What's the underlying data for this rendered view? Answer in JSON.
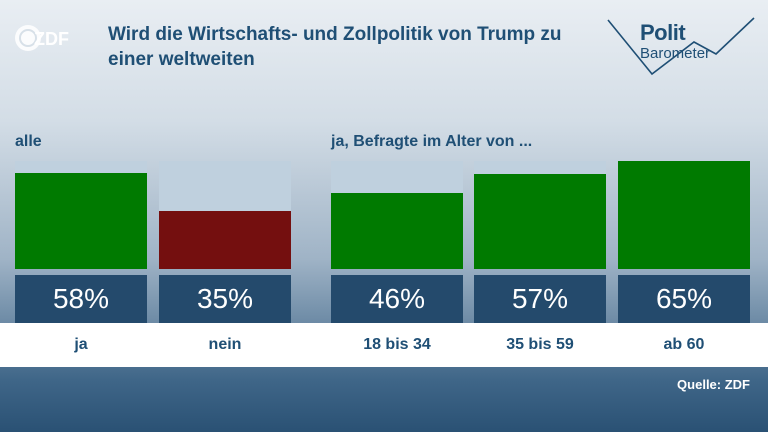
{
  "header": {
    "logo_text": "ZDF",
    "title": "Wird die Wirtschafts- und Zollpolitik von Trump zu einer weltweiten",
    "brand_line1": "Polit",
    "brand_line2": "Barometer"
  },
  "chart_data": {
    "type": "bar",
    "title": "Wird die Wirtschafts- und Zollpolitik von Trump zu einer weltweiten",
    "unit": "%",
    "ylim": [
      0,
      65
    ],
    "groups": [
      {
        "label": "alle",
        "categories": [
          "ja",
          "nein"
        ],
        "values": [
          58,
          35
        ],
        "colors": [
          "#007a00",
          "#740f0f"
        ]
      },
      {
        "label": "ja, Befragte im Alter von ...",
        "categories": [
          "18 bis 34",
          "35 bis 59",
          "ab 60"
        ],
        "values": [
          46,
          57,
          65
        ],
        "colors": [
          "#007a00",
          "#007a00",
          "#007a00"
        ]
      }
    ]
  },
  "footer": {
    "source": "Quelle: ZDF"
  }
}
